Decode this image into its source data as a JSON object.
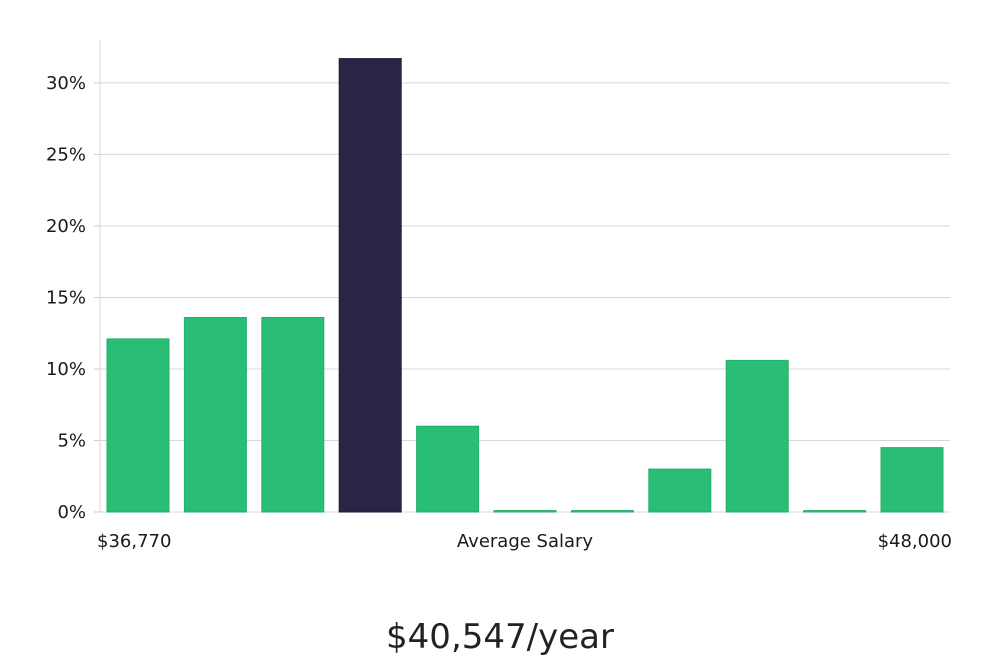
{
  "chart_data": {
    "type": "bar",
    "categories": [
      "",
      "",
      "",
      "",
      "",
      "",
      "",
      "",
      "",
      "",
      ""
    ],
    "values": [
      12.1,
      13.6,
      13.6,
      31.7,
      6.0,
      0.1,
      0.1,
      3.0,
      10.6,
      0.1,
      4.5
    ],
    "highlight_index": 3,
    "ylim": [
      0,
      33
    ],
    "yticks": [
      0,
      5,
      10,
      15,
      20,
      25,
      30
    ],
    "ytick_labels": [
      "0%",
      "5%",
      "10%",
      "15%",
      "20%",
      "25%",
      "30%"
    ],
    "grid": true,
    "legend": "none",
    "xlabel": "Average Salary",
    "x_min_label": "$36,770",
    "x_max_label": "$48,000",
    "summary_value": "$40,547/year",
    "colors": {
      "bar": "#29bd76",
      "highlight": "#2b2545",
      "grid": "#d8d8d8",
      "axis": "#cccccc"
    }
  }
}
